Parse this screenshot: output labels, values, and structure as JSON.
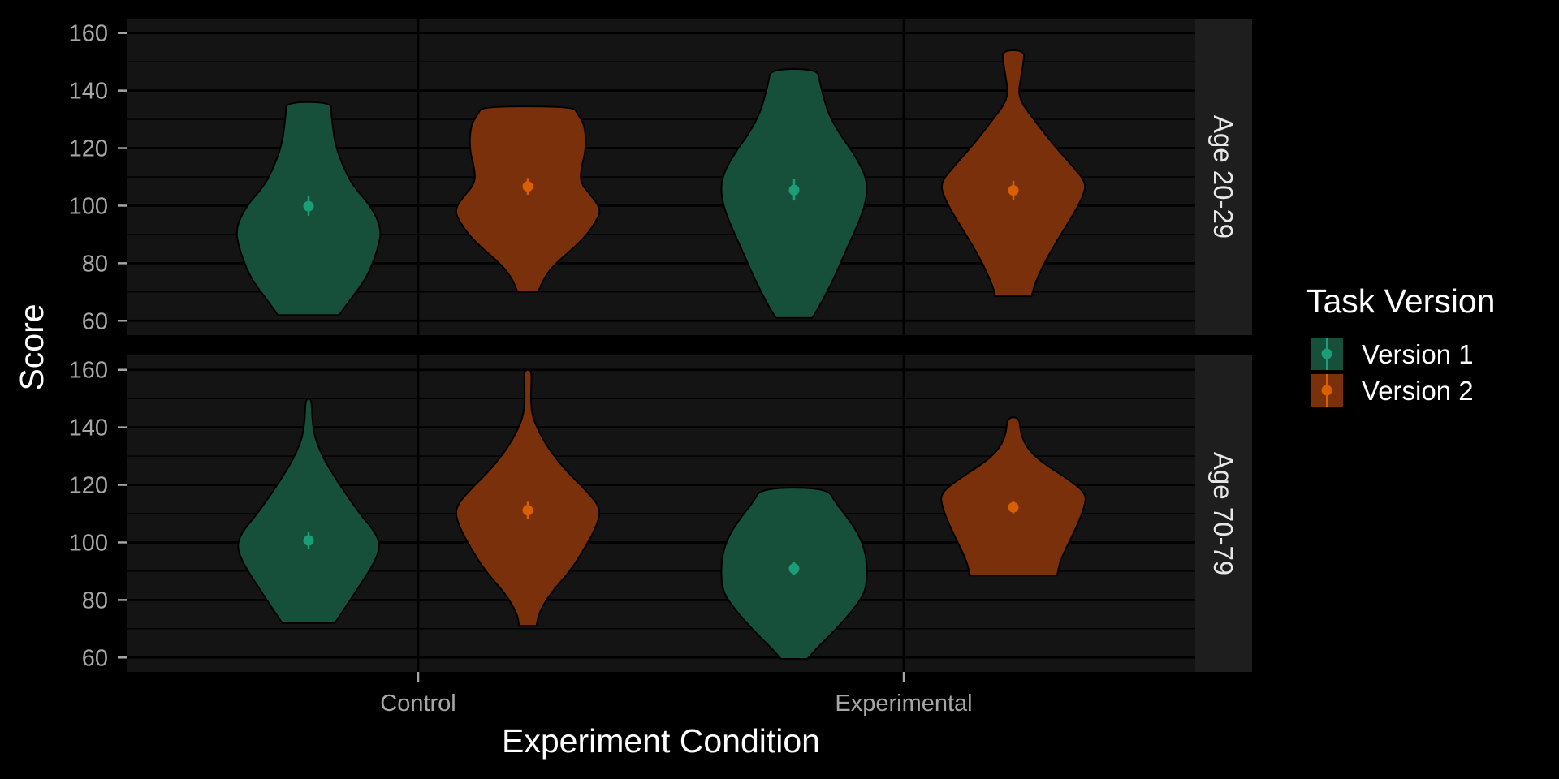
{
  "chart_data": {
    "type": "violin",
    "xlabel": "Experiment Condition",
    "ylabel": "Score",
    "categories": [
      "Control",
      "Experimental"
    ],
    "facets": [
      "Age 20-29",
      "Age 70-79"
    ],
    "yticks": [
      60,
      80,
      100,
      120,
      140,
      160
    ],
    "ylim": [
      55,
      165
    ],
    "legend": {
      "title": "Task Version",
      "position": "right",
      "entries": [
        {
          "label": "Version 1",
          "color": "#1b9e77"
        },
        {
          "label": "Version 2",
          "color": "#d95f02"
        }
      ]
    },
    "colors": {
      "Version 1": {
        "fill": "#17503a",
        "point": "#1b9e77"
      },
      "Version 2": {
        "fill": "#7a310b",
        "point": "#d95f02"
      },
      "panel_bg": "#141414",
      "strip_bg": "#1e1e1e",
      "grid": "#000000"
    },
    "series": [
      {
        "facet": "Age 20-29",
        "category": "Control",
        "name": "Version 1",
        "min": 62,
        "max": 136,
        "mean": 99.8,
        "ci": [
          96.5,
          103.2
        ],
        "profile": [
          [
            62,
            0.42
          ],
          [
            67,
            0.56
          ],
          [
            75,
            0.8
          ],
          [
            85,
            0.95
          ],
          [
            92,
            1.0
          ],
          [
            100,
            0.85
          ],
          [
            107,
            0.6
          ],
          [
            115,
            0.45
          ],
          [
            122,
            0.36
          ],
          [
            128,
            0.33
          ],
          [
            132,
            0.31
          ],
          [
            136,
            0.31
          ]
        ]
      },
      {
        "facet": "Age 20-29",
        "category": "Control",
        "name": "Version 2",
        "min": 70,
        "max": 134.5,
        "mean": 106.7,
        "ci": [
          103.8,
          109.6
        ],
        "profile": [
          [
            70,
            0.14
          ],
          [
            75,
            0.22
          ],
          [
            80,
            0.38
          ],
          [
            88,
            0.75
          ],
          [
            95,
            0.95
          ],
          [
            99,
            1.0
          ],
          [
            104,
            0.85
          ],
          [
            108,
            0.72
          ],
          [
            113,
            0.73
          ],
          [
            120,
            0.8
          ],
          [
            128,
            0.78
          ],
          [
            132,
            0.68
          ],
          [
            134.5,
            0.62
          ]
        ]
      },
      {
        "facet": "Age 20-29",
        "category": "Experimental",
        "name": "Version 1",
        "min": 61,
        "max": 147.5,
        "mean": 105.4,
        "ci": [
          101.8,
          109.2
        ],
        "profile": [
          [
            61,
            0.25
          ],
          [
            66,
            0.37
          ],
          [
            75,
            0.55
          ],
          [
            85,
            0.72
          ],
          [
            95,
            0.9
          ],
          [
            103,
            1.0
          ],
          [
            110,
            0.99
          ],
          [
            118,
            0.82
          ],
          [
            125,
            0.62
          ],
          [
            132,
            0.47
          ],
          [
            138,
            0.4
          ],
          [
            143,
            0.35
          ],
          [
            147.5,
            0.32
          ]
        ]
      },
      {
        "facet": "Age 20-29",
        "category": "Experimental",
        "name": "Version 2",
        "min": 68.5,
        "max": 154,
        "mean": 105.3,
        "ci": [
          102,
          108.6
        ],
        "profile": [
          [
            68.5,
            0.25
          ],
          [
            72,
            0.28
          ],
          [
            80,
            0.42
          ],
          [
            88,
            0.6
          ],
          [
            96,
            0.8
          ],
          [
            103,
            0.95
          ],
          [
            108,
            1.0
          ],
          [
            114,
            0.8
          ],
          [
            122,
            0.52
          ],
          [
            130,
            0.28
          ],
          [
            135,
            0.13
          ],
          [
            139,
            0.07
          ],
          [
            144,
            0.1
          ],
          [
            150,
            0.14
          ],
          [
            154,
            0.15
          ]
        ]
      },
      {
        "facet": "Age 70-79",
        "category": "Control",
        "name": "Version 1",
        "min": 72,
        "max": 150,
        "mean": 100.7,
        "ci": [
          97.6,
          103.6
        ],
        "profile": [
          [
            72,
            0.36
          ],
          [
            78,
            0.52
          ],
          [
            85,
            0.7
          ],
          [
            92,
            0.88
          ],
          [
            98,
            0.98
          ],
          [
            103,
            0.93
          ],
          [
            110,
            0.7
          ],
          [
            118,
            0.48
          ],
          [
            125,
            0.3
          ],
          [
            131,
            0.17
          ],
          [
            137,
            0.08
          ],
          [
            143,
            0.05
          ],
          [
            150,
            0.04
          ]
        ]
      },
      {
        "facet": "Age 70-79",
        "category": "Control",
        "name": "Version 2",
        "min": 71,
        "max": 160,
        "mean": 111.2,
        "ci": [
          108.3,
          114.1
        ],
        "profile": [
          [
            71,
            0.12
          ],
          [
            75,
            0.14
          ],
          [
            82,
            0.3
          ],
          [
            90,
            0.58
          ],
          [
            98,
            0.78
          ],
          [
            106,
            0.95
          ],
          [
            112,
            1.0
          ],
          [
            118,
            0.8
          ],
          [
            125,
            0.52
          ],
          [
            132,
            0.3
          ],
          [
            138,
            0.16
          ],
          [
            144,
            0.06
          ],
          [
            150,
            0.04
          ],
          [
            155,
            0.05
          ],
          [
            160,
            0.05
          ]
        ]
      },
      {
        "facet": "Age 70-79",
        "category": "Experimental",
        "name": "Version 1",
        "min": 59.5,
        "max": 119,
        "mean": 90.9,
        "ci": [
          88.7,
          93.1
        ],
        "profile": [
          [
            59.5,
            0.18
          ],
          [
            63,
            0.3
          ],
          [
            70,
            0.58
          ],
          [
            77,
            0.82
          ],
          [
            83,
            0.98
          ],
          [
            90,
            1.0
          ],
          [
            96,
            0.98
          ],
          [
            102,
            0.9
          ],
          [
            108,
            0.75
          ],
          [
            114,
            0.56
          ],
          [
            119,
            0.45
          ]
        ]
      },
      {
        "facet": "Age 70-79",
        "category": "Experimental",
        "name": "Version 2",
        "min": 88.5,
        "max": 143.5,
        "mean": 112.2,
        "ci": [
          110.1,
          114.3
        ],
        "profile": [
          [
            88.5,
            0.6
          ],
          [
            92,
            0.62
          ],
          [
            98,
            0.72
          ],
          [
            105,
            0.86
          ],
          [
            112,
            0.97
          ],
          [
            117,
            1.0
          ],
          [
            122,
            0.75
          ],
          [
            128,
            0.38
          ],
          [
            133,
            0.18
          ],
          [
            138,
            0.1
          ],
          [
            143.5,
            0.08
          ]
        ]
      }
    ]
  }
}
